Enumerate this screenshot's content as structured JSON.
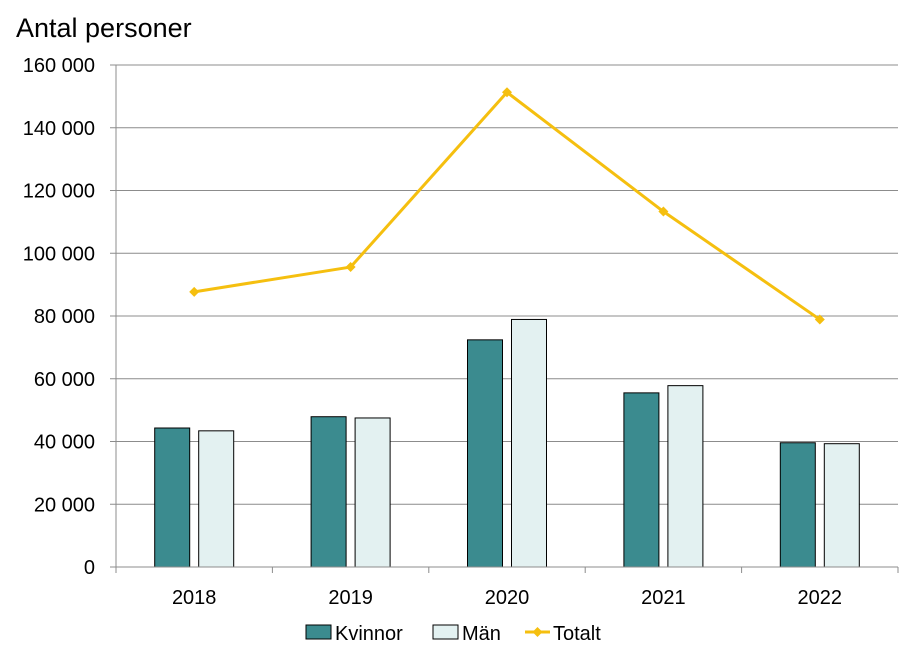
{
  "chart_data": {
    "type": "bar",
    "title": "",
    "ylabel": "Antal personer",
    "xlabel": "",
    "categories": [
      "2018",
      "2019",
      "2020",
      "2021",
      "2022"
    ],
    "ylim": [
      0,
      160000
    ],
    "yticks": [
      0,
      20000,
      40000,
      60000,
      80000,
      100000,
      120000,
      140000,
      160000
    ],
    "ytick_labels": [
      "0",
      "20 000",
      "40 000",
      "60 000",
      "80 000",
      "100 000",
      "120 000",
      "140 000",
      "160 000"
    ],
    "grid": true,
    "legend_position": "bottom",
    "series": [
      {
        "name": "Kvinnor",
        "type": "bar",
        "color": "#3b8b8f",
        "values": [
          44300,
          47900,
          72400,
          55500,
          39600
        ]
      },
      {
        "name": "Män",
        "type": "bar",
        "color": "#e3f1f1",
        "values": [
          43400,
          47500,
          78900,
          57800,
          39300
        ]
      },
      {
        "name": "Totalt",
        "type": "line",
        "color": "#f5bf0f",
        "values": [
          87700,
          95600,
          151300,
          113300,
          78900
        ]
      }
    ]
  }
}
